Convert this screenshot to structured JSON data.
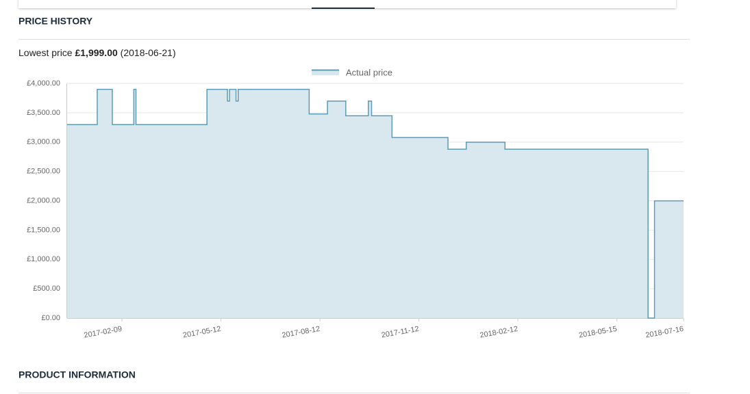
{
  "header": {
    "section_title": "PRICE HISTORY",
    "lowest_price": {
      "label": "Lowest price",
      "price": "£1,999.00",
      "date": "(2018-06-21)"
    }
  },
  "chart_data": {
    "type": "area",
    "step": "after",
    "x": [
      "2016-12-20",
      "2017-01-17",
      "2017-01-31",
      "2017-02-20",
      "2017-02-22",
      "2017-04-29",
      "2017-05-18",
      "2017-05-20",
      "2017-05-26",
      "2017-05-28",
      "2017-08-02",
      "2017-08-19",
      "2017-09-05",
      "2017-09-26",
      "2017-09-29",
      "2017-10-18",
      "2017-12-09",
      "2017-12-26",
      "2018-01-31",
      "2018-06-13",
      "2018-06-19",
      "2018-07-16"
    ],
    "series": [
      {
        "name": "Actual price",
        "color": "#5b9bb5",
        "fill": "#d7e7ee",
        "values": [
          3299,
          3899,
          3299,
          3899,
          3299,
          3899,
          3699,
          3899,
          3699,
          3899,
          3479,
          3699,
          3449,
          3699,
          3449,
          3079,
          2879,
          2999,
          2879,
          0,
          1999,
          1999
        ]
      }
    ],
    "xlim": [
      "2016-12-20",
      "2018-07-16"
    ],
    "xticks": [
      "2017-02-09",
      "2017-05-12",
      "2017-08-12",
      "2017-11-12",
      "2018-02-12",
      "2018-05-15",
      "2018-07-16"
    ],
    "ylim": [
      0,
      4000
    ],
    "yticks": [
      {
        "value": 0,
        "label": "£0.00"
      },
      {
        "value": 500,
        "label": "£500.00"
      },
      {
        "value": 1000,
        "label": "£1,000.00"
      },
      {
        "value": 1500,
        "label": "£1,500.00"
      },
      {
        "value": 2000,
        "label": "£2,000.00"
      },
      {
        "value": 2500,
        "label": "£2,500.00"
      },
      {
        "value": 3000,
        "label": "£3,000.00"
      },
      {
        "value": 3500,
        "label": "£3,500.00"
      },
      {
        "value": 4000,
        "label": "£4,000.00"
      }
    ],
    "grid": true,
    "legend": "top"
  },
  "footer": {
    "section_title": "PRODUCT INFORMATION"
  }
}
